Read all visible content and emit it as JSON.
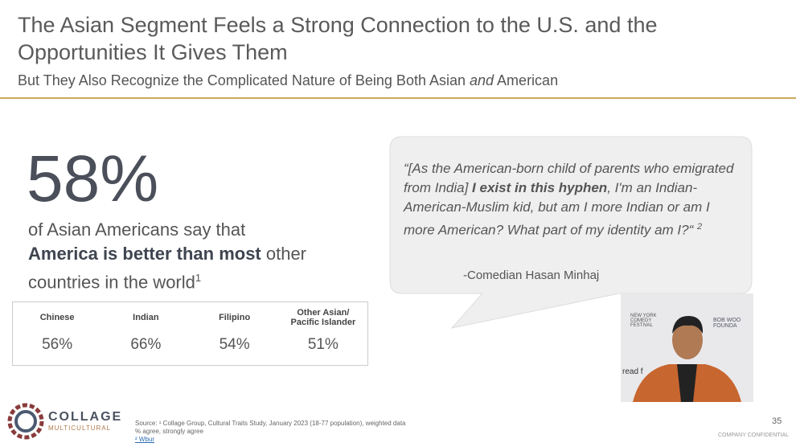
{
  "header": {
    "title": "The Asian Segment Feels a Strong Connection to the U.S. and the Opportunities It Gives Them",
    "subtitle": [
      "But They Also Recognize the Complicated Nature of Being Both Asian ",
      "and",
      " American"
    ]
  },
  "stat": {
    "value": "58%",
    "text": [
      "of Asian Americans say that",
      "America is better than most",
      " other",
      "countries in the world",
      "1"
    ]
  },
  "table": {
    "headers": [
      "Chinese",
      "Indian",
      "Filipino",
      "Other Asian/ Pacific Islander"
    ],
    "rows": [
      [
        "56%",
        "66%",
        "54%",
        "51%"
      ]
    ]
  },
  "quote": {
    "parts": [
      "“[As the American-born child of parents who emigrated from India] ",
      "I exist in this hyphen",
      ", I'm an Indian-American-Muslim kid, but am I more Indian or am I more American? What part of my identity am I?“ ",
      "2"
    ],
    "attribution": "-Comedian Hasan Minhaj"
  },
  "photo": {
    "texts": [
      "NEW YORK COMEDY FESTIVAL",
      "BOB WOO FOUNDA",
      "read f"
    ]
  },
  "logo": {
    "name": "COLLAGE",
    "tagline": "MULTICULTURAL"
  },
  "footer": {
    "source": [
      "Source: ¹ Collage Group, Cultural Traits Study, January 2023 (18-77 population), weighted data",
      "% agree, strongly agree",
      "² Wbur"
    ],
    "page": "35",
    "confidential": "COMPANY CONFIDENTIAL"
  }
}
